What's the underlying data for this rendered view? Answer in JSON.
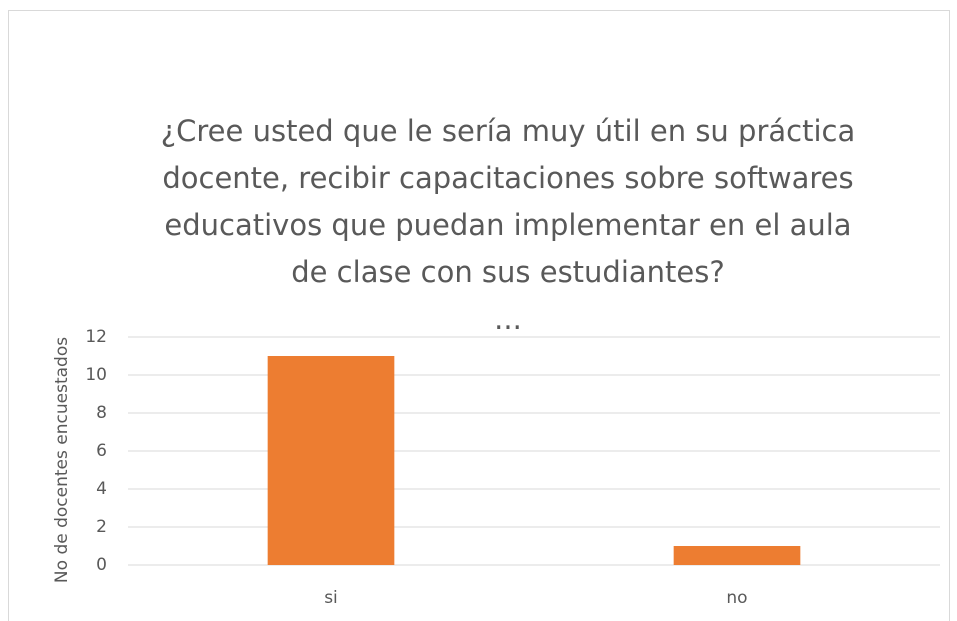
{
  "chart_data": {
    "type": "bar",
    "title": [
      "¿Cree usted que le sería muy útil en su práctica",
      "docente, recibir capacitaciones sobre softwares",
      "educativos que puedan implementar en el aula",
      "de clase con sus estudiantes?",
      "..."
    ],
    "y_axis_label": "No de docentes encuestados",
    "categories": [
      "si",
      "no"
    ],
    "values": [
      11,
      1
    ],
    "color": "#ed7d31",
    "ylim": [
      0,
      12
    ],
    "yticks": [
      0,
      2,
      4,
      6,
      8,
      10,
      12
    ],
    "grid": true
  }
}
